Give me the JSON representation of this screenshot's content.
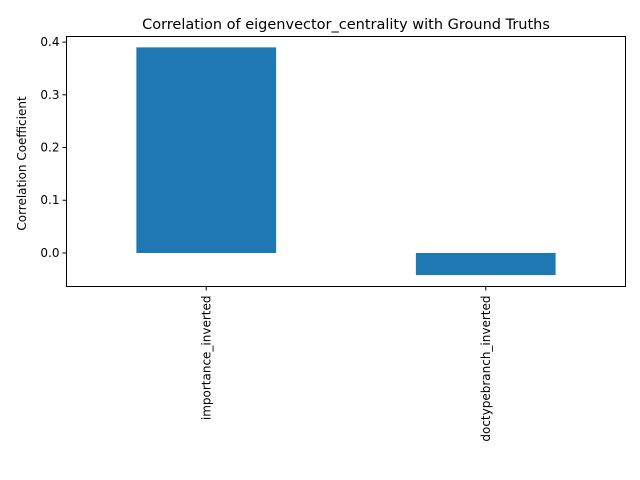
{
  "chart_data": {
    "type": "bar",
    "title": "Correlation of eigenvector_centrality with Ground Truths",
    "xlabel": "",
    "ylabel": "Correlation Coefficient",
    "categories": [
      "importance_inverted",
      "doctypebranch_inverted"
    ],
    "values": [
      0.39,
      -0.042
    ],
    "ylim": [
      -0.0636,
      0.4106
    ],
    "yticks": [
      0.0,
      0.1,
      0.2,
      0.3,
      0.4
    ],
    "ytick_labels": [
      "0.0",
      "0.1",
      "0.2",
      "0.3",
      "0.4"
    ],
    "bar_color": "#1f77b4",
    "grid": false,
    "legend": "none"
  }
}
